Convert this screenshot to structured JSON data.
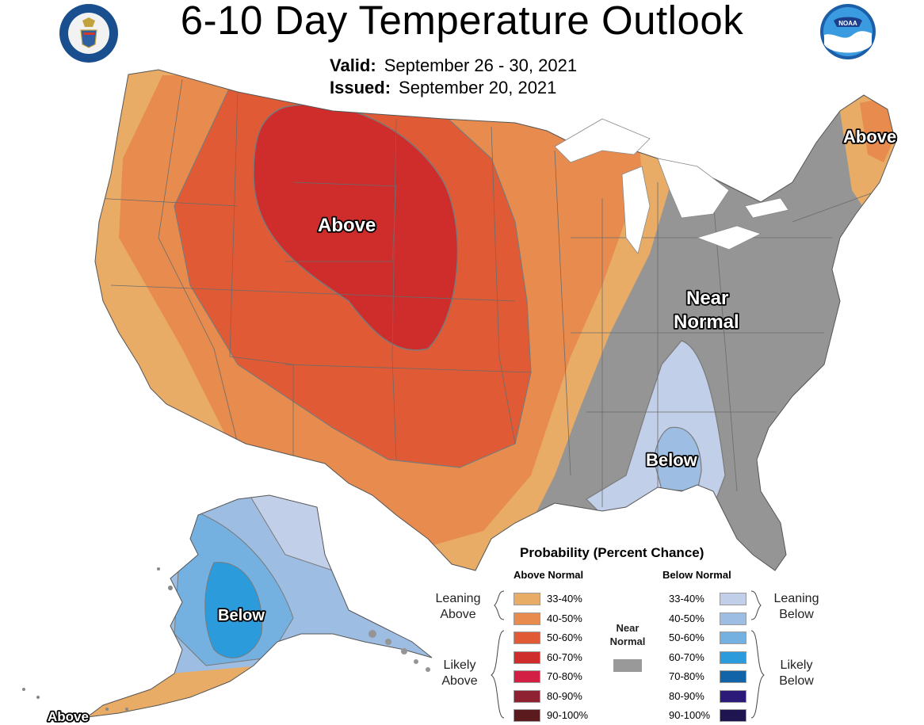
{
  "header": {
    "title": "6-10 Day Temperature Outlook",
    "valid_label": "Valid:",
    "valid_value": "September 26 - 30, 2021",
    "issued_label": "Issued:",
    "issued_value": "September 20, 2021"
  },
  "map_labels": {
    "west": "Above",
    "northeast": "Above",
    "east_near_1": "Near",
    "east_near_2": "Normal",
    "southeast": "Below",
    "alaska": "Below",
    "aleutians": "Above"
  },
  "legend": {
    "title": "Probability (Percent Chance)",
    "above_header": "Above Normal",
    "below_header": "Below Normal",
    "near_label_1": "Near",
    "near_label_2": "Normal",
    "leaning_above_1": "Leaning",
    "leaning_above_2": "Above",
    "likely_above_1": "Likely",
    "likely_above_2": "Above",
    "leaning_below_1": "Leaning",
    "leaning_below_2": "Below",
    "likely_below_1": "Likely",
    "likely_below_2": "Below",
    "above": [
      {
        "range": "33-40%",
        "color": "#e8ac67"
      },
      {
        "range": "40-50%",
        "color": "#e88b4e"
      },
      {
        "range": "50-60%",
        "color": "#e05b35"
      },
      {
        "range": "60-70%",
        "color": "#cf2c2c"
      },
      {
        "range": "70-80%",
        "color": "#d41f45"
      },
      {
        "range": "80-90%",
        "color": "#8e2233"
      },
      {
        "range": "90-100%",
        "color": "#5a1a1e"
      }
    ],
    "below": [
      {
        "range": "33-40%",
        "color": "#c2cfe9"
      },
      {
        "range": "40-50%",
        "color": "#9dbde3"
      },
      {
        "range": "50-60%",
        "color": "#74b1e0"
      },
      {
        "range": "60-70%",
        "color": "#2b9bdb"
      },
      {
        "range": "70-80%",
        "color": "#1264a8"
      },
      {
        "range": "80-90%",
        "color": "#2c1a78"
      },
      {
        "range": "90-100%",
        "color": "#1e1450"
      }
    ],
    "near_color": "#999999"
  },
  "colors": {
    "near_normal": "#959595",
    "state_line": "#6b6b6b",
    "contour": "#7a7a7a"
  }
}
